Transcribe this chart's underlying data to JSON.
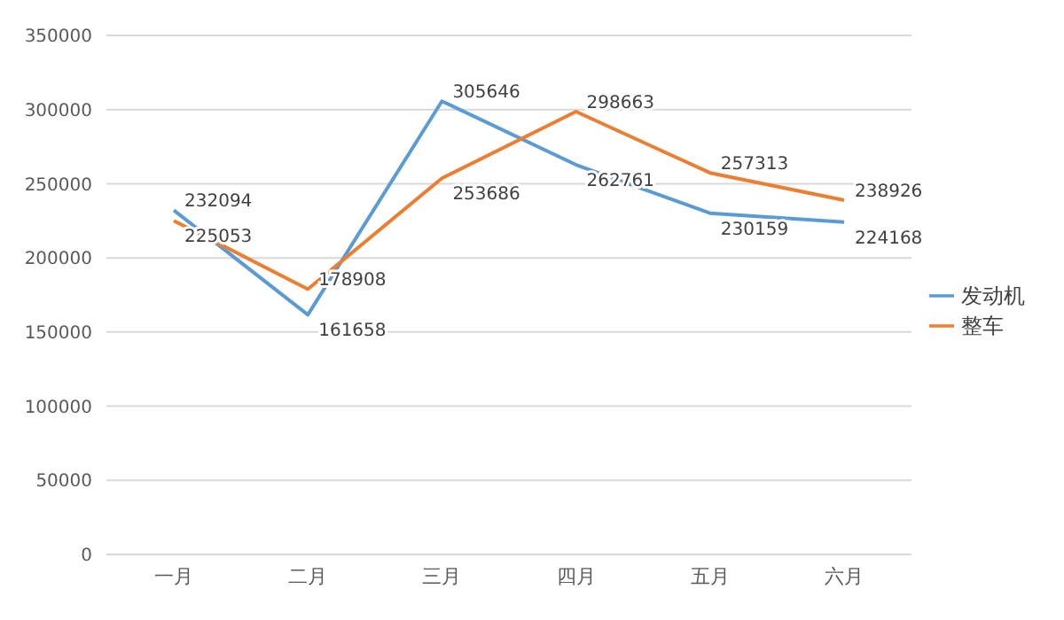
{
  "chart_data": {
    "type": "line",
    "categories": [
      "一月",
      "二月",
      "三月",
      "四月",
      "五月",
      "六月"
    ],
    "series": [
      {
        "name": "发动机",
        "color": "#5b9bd5",
        "values": [
          232094,
          161658,
          305646,
          262761,
          230159,
          224168
        ]
      },
      {
        "name": "整车",
        "color": "#ed7d31",
        "values": [
          225053,
          178908,
          253686,
          298663,
          257313,
          238926
        ]
      }
    ],
    "ylim": [
      0,
      350000
    ],
    "yticks": [
      0,
      50000,
      100000,
      150000,
      200000,
      250000,
      300000,
      350000
    ],
    "grid": "y",
    "legend": "right",
    "data_labels": true,
    "marker": "none",
    "line_style": "solid"
  }
}
